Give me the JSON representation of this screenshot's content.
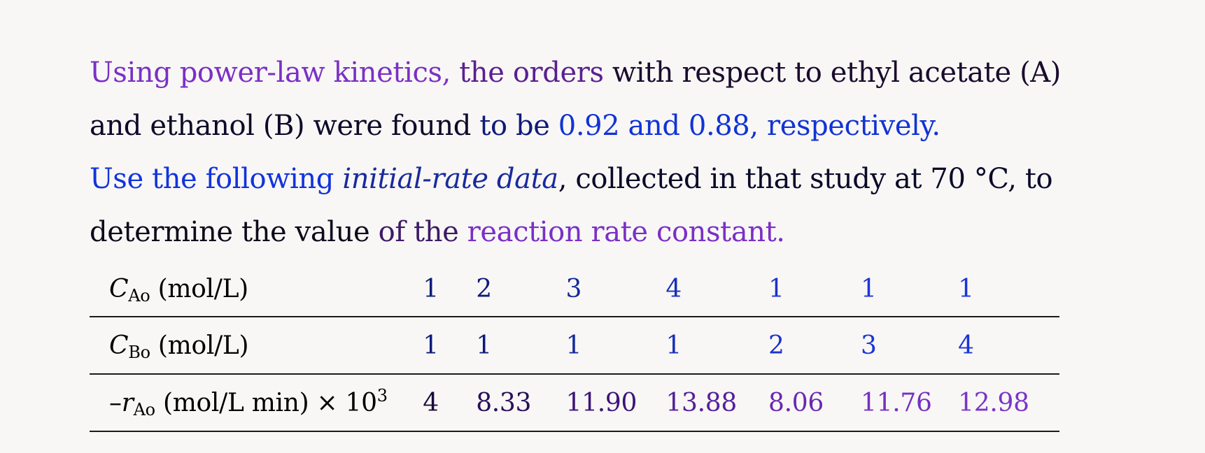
{
  "paragraph1": {
    "segments": [
      {
        "text": "Using power-law kinetics, ",
        "color": "#7b2fc6"
      },
      {
        "text": "the orders ",
        "color": "#5a1f92"
      },
      {
        "text": "with respect to ethyl acetate (A)",
        "color": "#1a0b2e"
      },
      {
        "text": "and ethanol (B) were found ",
        "color": "#0d0a2a"
      },
      {
        "text": "to be ",
        "color": "#0f1a7a"
      },
      {
        "text": "0.92 and 0.88, respectively.",
        "color": "#1133d6"
      }
    ]
  },
  "paragraph2": {
    "segments": [
      {
        "text": "Use the following ",
        "color": "#1133dd"
      },
      {
        "text": "initial-rate data",
        "color": "#1a2a9c"
      },
      {
        "text": ", collected in that study at 70 °C, to",
        "color": "#0a0a2a"
      },
      {
        "text": "determine the value ",
        "color": "#0d0a1a"
      },
      {
        "text": "of the ",
        "color": "#3d1a66"
      },
      {
        "text": "reaction rate constant.",
        "color": "#7b2fc6"
      }
    ]
  },
  "table": {
    "rows": [
      {
        "label": {
          "symbol": "C",
          "sub": "Ao",
          "unit": " (mol/L)",
          "prefix": "",
          "sup": "",
          "suffix": ""
        },
        "values": [
          "1",
          "2",
          "3",
          "4",
          "1",
          "1",
          "1"
        ],
        "colors": [
          "#0f1a7a",
          "#0f1a7a",
          "#142a9a",
          "#1830b8",
          "#1a33cc",
          "#1a35d8",
          "#1a35d8"
        ]
      },
      {
        "label": {
          "symbol": "C",
          "sub": "Bo",
          "unit": " (mol/L)",
          "prefix": "",
          "sup": "",
          "suffix": ""
        },
        "values": [
          "1",
          "1",
          "1",
          "1",
          "2",
          "3",
          "4"
        ],
        "colors": [
          "#0f1a7a",
          "#0f1a7a",
          "#142a9a",
          "#1830b8",
          "#1a33cc",
          "#1a35d8",
          "#1a35d8"
        ]
      },
      {
        "label": {
          "symbol": "r",
          "sub": "Ao",
          "unit": " (mol/L min) × 10",
          "prefix": "–",
          "sup": "3",
          "suffix": ""
        },
        "values": [
          "4",
          "8.33",
          "11.90",
          "13.88",
          "8.06",
          "11.76",
          "12.98"
        ],
        "colors": [
          "#1a0b3a",
          "#2a0e5a",
          "#3d1478",
          "#55209a",
          "#6a27b2",
          "#7530c0",
          "#7b34c8"
        ]
      }
    ]
  }
}
